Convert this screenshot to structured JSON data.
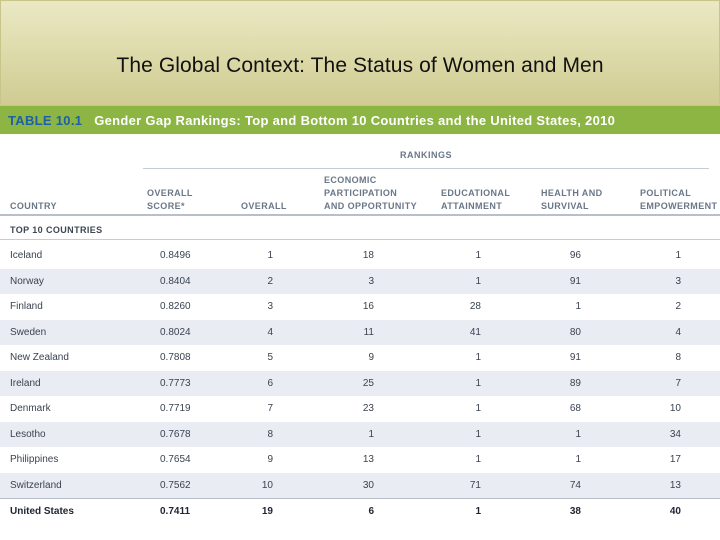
{
  "slide": {
    "title": "The Global Context: The Status of Women and Men"
  },
  "table": {
    "number": "TABLE 10.1",
    "caption": "Gender Gap Rankings: Top and Bottom 10 Countries and the United States, 2010",
    "rankings_label": "RANKINGS",
    "headers": {
      "country": "COUNTRY",
      "score": "OVERALL\nSCORE*",
      "overall": "OVERALL",
      "econ": "ECONOMIC\nPARTICIPATION\nAND OPPORTUNITY",
      "edu": "EDUCATIONAL\nATTAINMENT",
      "health": "HEALTH AND\nSURVIVAL",
      "pol": "POLITICAL\nEMPOWERMENT"
    },
    "group_label": "TOP 10 COUNTRIES",
    "rows": [
      {
        "country": "Iceland",
        "score": "0.8496",
        "overall": "1",
        "econ": "18",
        "edu": "1",
        "health": "96",
        "pol": "1"
      },
      {
        "country": "Norway",
        "score": "0.8404",
        "overall": "2",
        "econ": "3",
        "edu": "1",
        "health": "91",
        "pol": "3"
      },
      {
        "country": "Finland",
        "score": "0.8260",
        "overall": "3",
        "econ": "16",
        "edu": "28",
        "health": "1",
        "pol": "2"
      },
      {
        "country": "Sweden",
        "score": "0.8024",
        "overall": "4",
        "econ": "11",
        "edu": "41",
        "health": "80",
        "pol": "4"
      },
      {
        "country": "New Zealand",
        "score": "0.7808",
        "overall": "5",
        "econ": "9",
        "edu": "1",
        "health": "91",
        "pol": "8"
      },
      {
        "country": "Ireland",
        "score": "0.7773",
        "overall": "6",
        "econ": "25",
        "edu": "1",
        "health": "89",
        "pol": "7"
      },
      {
        "country": "Denmark",
        "score": "0.7719",
        "overall": "7",
        "econ": "23",
        "edu": "1",
        "health": "68",
        "pol": "10"
      },
      {
        "country": "Lesotho",
        "score": "0.7678",
        "overall": "8",
        "econ": "1",
        "edu": "1",
        "health": "1",
        "pol": "34"
      },
      {
        "country": "Philippines",
        "score": "0.7654",
        "overall": "9",
        "econ": "13",
        "edu": "1",
        "health": "1",
        "pol": "17"
      },
      {
        "country": "Switzerland",
        "score": "0.7562",
        "overall": "10",
        "econ": "30",
        "edu": "71",
        "health": "74",
        "pol": "13"
      },
      {
        "country": "United States",
        "score": "0.7411",
        "overall": "19",
        "econ": "6",
        "edu": "1",
        "health": "38",
        "pol": "40"
      }
    ]
  }
}
